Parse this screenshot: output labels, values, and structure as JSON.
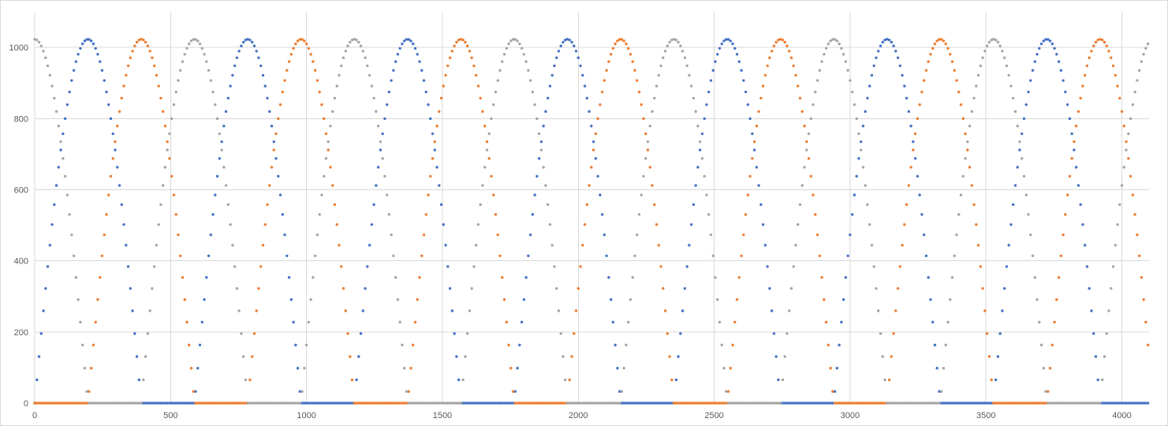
{
  "chart_data": {
    "type": "scatter",
    "title": "",
    "xlabel": "",
    "ylabel": "",
    "xlim": [
      0,
      4100
    ],
    "ylim": [
      0,
      1100
    ],
    "x_ticks": [
      0,
      500,
      1000,
      1500,
      2000,
      2500,
      3000,
      3500,
      4000
    ],
    "y_ticks": [
      0,
      200,
      400,
      600,
      800,
      1000
    ],
    "grid": {
      "vertical": true,
      "horizontal": true
    },
    "legend": "none",
    "point_step": 8,
    "period": 1176,
    "series": [
      {
        "color": "#4472c4",
        "x_start": 0,
        "x_end": 4096,
        "phase_shift": 0,
        "segments": [
          {
            "x": [
              0,
              392
            ],
            "shape": "sine",
            "range": [
              0,
              1023
            ]
          },
          {
            "x": [
              392,
              588
            ],
            "shape": "zero",
            "range": [
              0,
              0
            ]
          },
          {
            "x": [
              588,
              980
            ],
            "shape": "sine",
            "range": [
              0,
              1023
            ]
          },
          {
            "x": [
              980,
              1176
            ],
            "shape": "zero",
            "range": [
              0,
              0
            ]
          }
        ]
      },
      {
        "color": "#ed7d31",
        "x_start": 0,
        "x_end": 4096,
        "phase_shift": 392,
        "segments": [
          {
            "x": [
              0,
              392
            ],
            "shape": "sine",
            "range": [
              0,
              1023
            ]
          },
          {
            "x": [
              392,
              588
            ],
            "shape": "zero",
            "range": [
              0,
              0
            ]
          },
          {
            "x": [
              588,
              980
            ],
            "shape": "sine",
            "range": [
              0,
              1023
            ]
          },
          {
            "x": [
              980,
              1176
            ],
            "shape": "zero",
            "range": [
              0,
              0
            ]
          }
        ]
      },
      {
        "color": "#a5a5a5",
        "x_start": 0,
        "x_end": 4096,
        "phase_shift": 784,
        "segments": [
          {
            "x": [
              0,
              392
            ],
            "shape": "sine",
            "range": [
              0,
              1023
            ]
          },
          {
            "x": [
              392,
              588
            ],
            "shape": "zero",
            "range": [
              0,
              0
            ]
          },
          {
            "x": [
              588,
              980
            ],
            "shape": "sine",
            "range": [
              0,
              1023
            ]
          },
          {
            "x": [
              980,
              1176
            ],
            "shape": "zero",
            "range": [
              0,
              0
            ]
          }
        ]
      }
    ]
  }
}
